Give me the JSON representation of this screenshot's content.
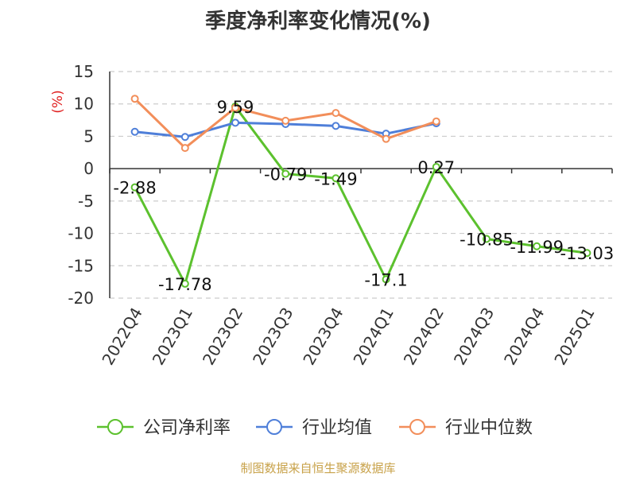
{
  "chart_data": {
    "type": "line",
    "title": "季度净利率变化情况(%)",
    "ylabel": "(%)",
    "xlabel": "",
    "categories": [
      "2022Q4",
      "2023Q1",
      "2023Q2",
      "2023Q3",
      "2023Q4",
      "2024Q1",
      "2024Q2",
      "2024Q3",
      "2024Q4",
      "2025Q1"
    ],
    "ylim": [
      -20,
      15
    ],
    "yticks": [
      "15",
      "10",
      "5",
      "0",
      "-5",
      "-10",
      "-15",
      "-20"
    ],
    "grid": true,
    "legend_position": "bottom",
    "series": [
      {
        "name": "公司净利率",
        "color": "#5cc12e",
        "values": [
          -2.88,
          -17.78,
          9.59,
          -0.79,
          -1.49,
          -17.1,
          0.27,
          -10.85,
          -11.99,
          -13.03
        ],
        "labels": [
          "-2.88",
          "-17.78",
          "9.59",
          "-0.79",
          "-1.49",
          "-17.1",
          "0.27",
          "-10.85",
          "-11.99",
          "-13.03"
        ]
      },
      {
        "name": "行业均值",
        "color": "#4f7fd9",
        "values": [
          5.7,
          4.9,
          7.1,
          6.9,
          6.6,
          5.4,
          7.0,
          null,
          null,
          null
        ]
      },
      {
        "name": "行业中位数",
        "color": "#f28e5a",
        "values": [
          10.8,
          3.2,
          9.4,
          7.4,
          8.6,
          4.6,
          7.3,
          null,
          null,
          null
        ]
      }
    ]
  },
  "source": "制图数据来自恒生聚源数据库"
}
